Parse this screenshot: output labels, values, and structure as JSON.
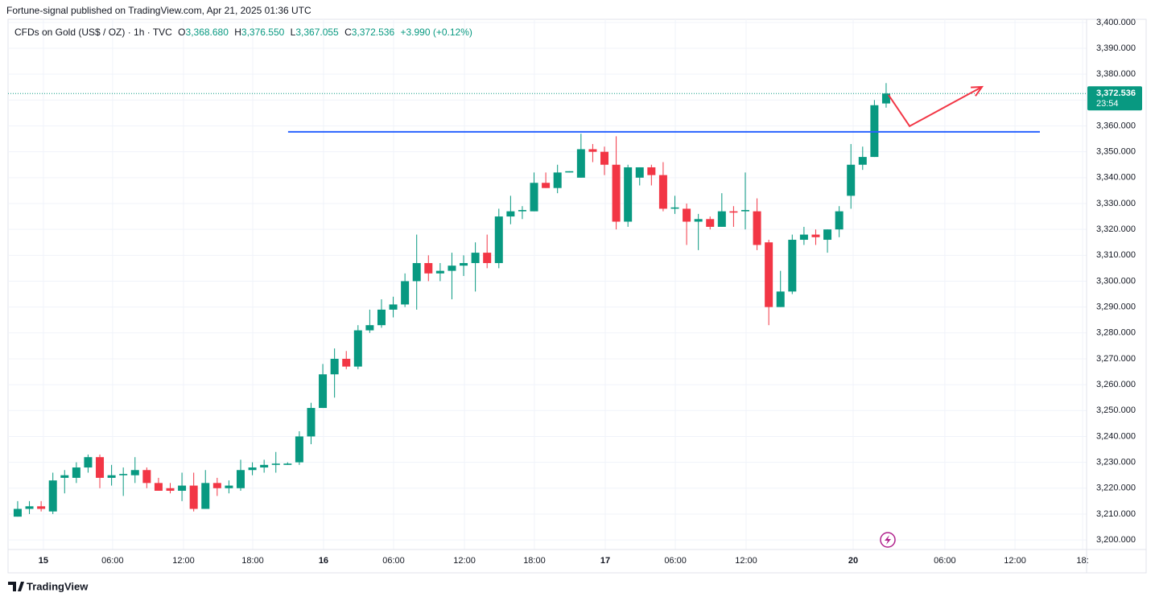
{
  "header": {
    "published": "Fortune-signal published on TradingView.com, Apr 21, 2025 01:36 UTC",
    "symbol": "CFDs on Gold (US$ / OZ) · 1h · TVC",
    "ohlc_labels": [
      "O",
      "H",
      "L",
      "C"
    ],
    "ohlc_values": [
      "3,368.680",
      "3,376.550",
      "3,367.055",
      "3,372.536"
    ],
    "change": "+3.990 (+0.12%)"
  },
  "footer": {
    "brand": "TradingView"
  },
  "chart_data": {
    "type": "candlestick",
    "up_color": "#089981",
    "down_color": "#f23645",
    "x": [
      0,
      1,
      2,
      3,
      4,
      5,
      6,
      7,
      8,
      9,
      10,
      11,
      12,
      13,
      14,
      15,
      16,
      17,
      18,
      19,
      20,
      21,
      22,
      23,
      24,
      25,
      26,
      27,
      28,
      29,
      30,
      31,
      32,
      33,
      34,
      35,
      36,
      37,
      38,
      39,
      40,
      41,
      42,
      43,
      44,
      45,
      46,
      47,
      48,
      49,
      50,
      51,
      52,
      53,
      54,
      55,
      56,
      57,
      58,
      59,
      60,
      61,
      62,
      63,
      64,
      65,
      66,
      67,
      68,
      69,
      70,
      71,
      72,
      73,
      74
    ],
    "open": [
      3209,
      3212,
      3213,
      3211,
      3224,
      3224,
      3228,
      3232,
      3224,
      3225,
      3225,
      3227,
      3222,
      3220,
      3219,
      3221,
      3212,
      3222,
      3220,
      3220,
      3227,
      3228,
      3229,
      3229,
      3230,
      3240,
      3251,
      3264,
      3270,
      3267,
      3281,
      3283,
      3289,
      3291,
      3300,
      3307,
      3303,
      3304,
      3306,
      3307,
      3311,
      3307,
      3325,
      3327,
      3327,
      3338,
      3336,
      3342,
      3340,
      3351,
      3350,
      3345,
      3323,
      3340,
      3344,
      3341,
      3328,
      3328,
      3323,
      3324,
      3321,
      3327,
      3327,
      3327,
      3315,
      3290,
      3296,
      3316,
      3318,
      3316,
      3320,
      3333,
      3345,
      3348,
      3368.68
    ],
    "close": [
      3212,
      3213,
      3212,
      3223,
      3225,
      3228,
      3232,
      3224,
      3225,
      3225.5,
      3227,
      3222,
      3219,
      3219,
      3221,
      3212,
      3222,
      3220,
      3221,
      3227,
      3228,
      3229,
      3229.5,
      3229.5,
      3240,
      3251,
      3264,
      3270,
      3267,
      3281,
      3283,
      3289,
      3291,
      3300,
      3307,
      3303,
      3304,
      3306,
      3307,
      3311,
      3307,
      3325,
      3327,
      3327.5,
      3338,
      3336,
      3342,
      3342.5,
      3351,
      3350,
      3345,
      3323,
      3344,
      3344,
      3341,
      3328,
      3328.5,
      3323,
      3324,
      3321,
      3327,
      3326.5,
      3327.5,
      3314,
      3290,
      3296,
      3316,
      3318,
      3317,
      3320,
      3327,
      3345,
      3348,
      3368,
      3372.536
    ],
    "high": [
      3215,
      3215,
      3215,
      3226,
      3227,
      3230,
      3233,
      3233,
      3229,
      3228,
      3232,
      3228,
      3224,
      3222,
      3226,
      3226,
      3227,
      3224,
      3223,
      3231,
      3230,
      3231,
      3234,
      3230,
      3242,
      3253,
      3268,
      3274,
      3273,
      3283,
      3289,
      3293,
      3294,
      3303,
      3318,
      3310,
      3307,
      3311,
      3310,
      3315,
      3318,
      3328,
      3333,
      3329,
      3342,
      3342,
      3345,
      3342.5,
      3357,
      3353,
      3352,
      3356,
      3345,
      3344,
      3345,
      3346,
      3333,
      3330,
      3326,
      3325,
      3334,
      3329,
      3342,
      3332,
      3316,
      3304,
      3318,
      3321,
      3320,
      3320,
      3329,
      3353,
      3352,
      3370,
      3376.55
    ],
    "low": [
      3209,
      3210,
      3211,
      3210,
      3218,
      3222,
      3226,
      3220,
      3221,
      3217,
      3222,
      3220,
      3219,
      3218,
      3215,
      3211,
      3212,
      3217,
      3218,
      3219,
      3225,
      3226,
      3226,
      3229,
      3229,
      3237,
      3251,
      3255,
      3266,
      3266,
      3280,
      3282,
      3286,
      3290,
      3289,
      3300,
      3300,
      3293,
      3302,
      3296,
      3305,
      3305,
      3322,
      3324,
      3327,
      3336,
      3334,
      3342,
      3340,
      3346,
      3341,
      3320,
      3321,
      3337,
      3337,
      3327,
      3326,
      3314,
      3312,
      3320,
      3321,
      3321,
      3320,
      3312,
      3283,
      3290,
      3295,
      3314,
      3314,
      3311,
      3317,
      3328,
      3343,
      3348,
      3367.055
    ],
    "xlim": [
      -0.82,
      91.08
    ],
    "xticks": [
      {
        "value": 2.19,
        "label": "15"
      },
      {
        "value": 8.09,
        "label": "06:00"
      },
      {
        "value": 14.13,
        "label": "12:00"
      },
      {
        "value": 20.03,
        "label": "18:00"
      },
      {
        "value": 26.06,
        "label": "16"
      },
      {
        "value": 32.03,
        "label": "06:00"
      },
      {
        "value": 38.07,
        "label": "12:00"
      },
      {
        "value": 44.03,
        "label": "18:00"
      },
      {
        "value": 50.07,
        "label": "17"
      },
      {
        "value": 56.04,
        "label": "06:00"
      },
      {
        "value": 62.07,
        "label": "12:00"
      },
      {
        "value": 71.19,
        "label": "20"
      },
      {
        "value": 79.0,
        "label": "06:00"
      },
      {
        "value": 84.98,
        "label": "12:00"
      },
      {
        "value": 90.74,
        "label": "18:"
      }
    ],
    "ylim": [
      3196.3,
      3401.2
    ],
    "yticks": [
      {
        "value": 3200,
        "label": "3,200.000"
      },
      {
        "value": 3210,
        "label": "3,210.000"
      },
      {
        "value": 3220,
        "label": "3,220.000"
      },
      {
        "value": 3230,
        "label": "3,230.000"
      },
      {
        "value": 3240,
        "label": "3,240.000"
      },
      {
        "value": 3250,
        "label": "3,250.000"
      },
      {
        "value": 3260,
        "label": "3,260.000"
      },
      {
        "value": 3270,
        "label": "3,270.000"
      },
      {
        "value": 3280,
        "label": "3,280.000"
      },
      {
        "value": 3290,
        "label": "3,290.000"
      },
      {
        "value": 3300,
        "label": "3,300.000"
      },
      {
        "value": 3310,
        "label": "3,310.000"
      },
      {
        "value": 3320,
        "label": "3,320.000"
      },
      {
        "value": 3330,
        "label": "3,330.000"
      },
      {
        "value": 3340,
        "label": "3,340.000"
      },
      {
        "value": 3350,
        "label": "3,350.000"
      },
      {
        "value": 3360,
        "label": "3,360.000"
      },
      {
        "value": 3370,
        "label": "3,370.000"
      },
      {
        "value": 3380,
        "label": "3,380.000"
      },
      {
        "value": 3390,
        "label": "3,390.000"
      },
      {
        "value": 3400,
        "label": "3,400.000"
      }
    ],
    "grid": true,
    "last_price": {
      "label": "3,372.536",
      "countdown": "23:54",
      "color": "#089981"
    },
    "level_line": {
      "x": [
        23.04,
        87.1
      ],
      "y": [
        3357.7,
        3357.7
      ],
      "color": "#2962ff"
    },
    "arrow": {
      "x": [
        74.2,
        76.0,
        82.17
      ],
      "y": [
        3372.0,
        3359.9,
        3375.1
      ],
      "color": "#f23645"
    }
  }
}
